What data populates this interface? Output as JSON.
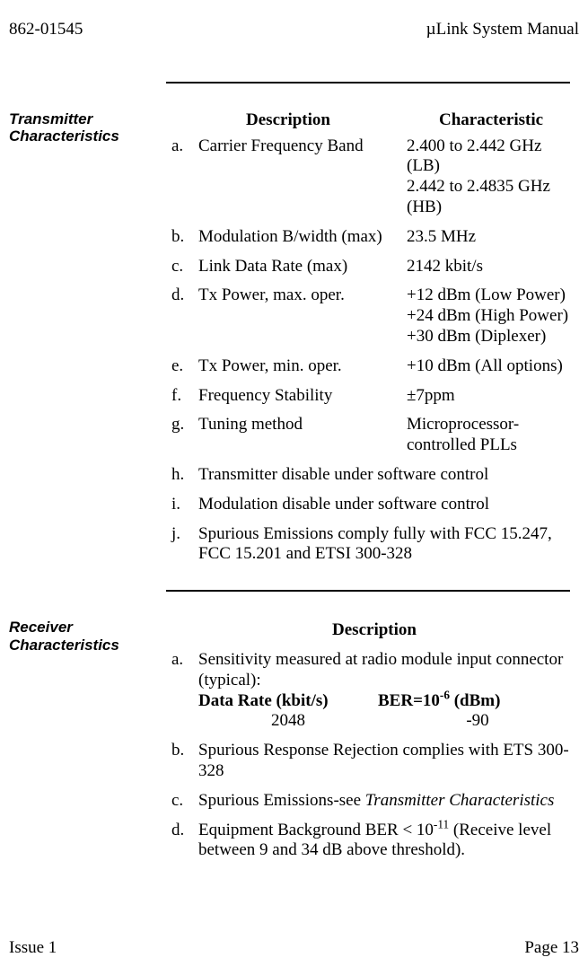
{
  "header": {
    "left": "862-01545",
    "right": "µLink System Manual"
  },
  "footer": {
    "left": "Issue 1",
    "right": "Page 13"
  },
  "tx": {
    "heading": "Transmitter Characteristics",
    "col_desc": "Description",
    "col_char": "Characteristic",
    "rows": [
      {
        "m": "a.",
        "d": "Carrier Frequency Band",
        "c": "2.400 to 2.442 GHz (LB)\n2.442 to 2.4835 GHz (HB)"
      },
      {
        "m": "b.",
        "d": "Modulation B/width (max)",
        "c": "23.5 MHz"
      },
      {
        "m": "c.",
        "d": "Link Data Rate (max)",
        "c": "2142 kbit/s"
      },
      {
        "m": "d.",
        "d": "Tx Power, max. oper.",
        "c": "+12 dBm (Low Power)\n+24 dBm (High Power)\n+30 dBm (Diplexer)"
      },
      {
        "m": "e.",
        "d": "Tx Power, min. oper.",
        "c": "+10 dBm (All options)"
      },
      {
        "m": "f.",
        "d": "Frequency Stability",
        "c": "±7ppm"
      },
      {
        "m": "g.",
        "d": "Tuning method",
        "c": "Microprocessor-controlled PLLs"
      }
    ],
    "wide_rows": [
      {
        "m": "h.",
        "d": "Transmitter disable under software control"
      },
      {
        "m": "i.",
        "d": "Modulation disable under software control"
      },
      {
        "m": "j.",
        "d": "Spurious Emissions comply fully with FCC 15.247, FCC 15.201 and ETSI 300-328"
      }
    ]
  },
  "rx": {
    "heading": "Receiver Characteristics",
    "col_desc": "Description",
    "a": {
      "m": "a.",
      "intro": "Sensitivity measured at radio module input connector (typical):",
      "h1": "Data Rate (kbit/s)",
      "h2_pre": "BER=10",
      "h2_sup": "-6",
      "h2_post": " (dBm)",
      "v1": "2048",
      "v2": "-90"
    },
    "b": {
      "m": "b.",
      "d": "Spurious Response Rejection complies with ETS 300-328"
    },
    "c": {
      "m": "c.",
      "pre": "Spurious Emissions-see ",
      "ital": "Transmitter Characteristics"
    },
    "d": {
      "m": "d.",
      "pre": "Equipment Background BER < 10",
      "sup": "-11",
      "post": " (Receive level between 9 and 34 dB above threshold)."
    }
  }
}
